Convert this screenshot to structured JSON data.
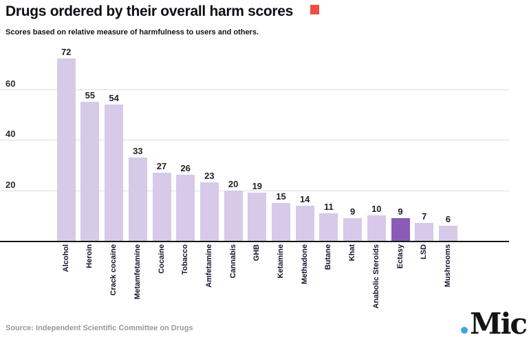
{
  "header": {
    "title": "Drugs ordered by their overall harm scores",
    "subtitle": "Scores based on relative measure of harmfulness to users and others."
  },
  "footer": {
    "source": "Source: Independent Scientific Committee on Drugs",
    "brand_name": "Mic"
  },
  "colors": {
    "bar": "#d7c9e8",
    "bar_highlight": "#8a5cb8",
    "gridline": "#dcdcdc",
    "axis_line": "#161616",
    "red_marker": "#ef4e45",
    "brand_dot_blue": "#42a4e0",
    "source_text": "#999999"
  },
  "chart_data": {
    "type": "bar",
    "title": "Drugs ordered by their overall harm scores",
    "subtitle": "Scores based on relative measure of harmfulness to users and others.",
    "categories": [
      "Alcohol",
      "Heroin",
      "Crack cocaine",
      "Metamfetamine",
      "Cocaine",
      "Tobacco",
      "Amfetamine",
      "Cannabis",
      "GHB",
      "Ketamine",
      "Methadone",
      "Butane",
      "Khat",
      "Anabolic Steroids",
      "Ectasy",
      "LSD",
      "Mushrooms"
    ],
    "values": [
      72,
      55,
      54,
      33,
      27,
      26,
      23,
      20,
      19,
      15,
      14,
      11,
      9,
      10,
      9,
      7,
      6
    ],
    "highlighted_category": "Ectasy",
    "value_labels": true,
    "xlabel": "",
    "ylabel": "",
    "yticks": [
      20,
      40,
      60
    ],
    "ylim": [
      0,
      75
    ],
    "grid": "horizontal",
    "legend": "none"
  }
}
